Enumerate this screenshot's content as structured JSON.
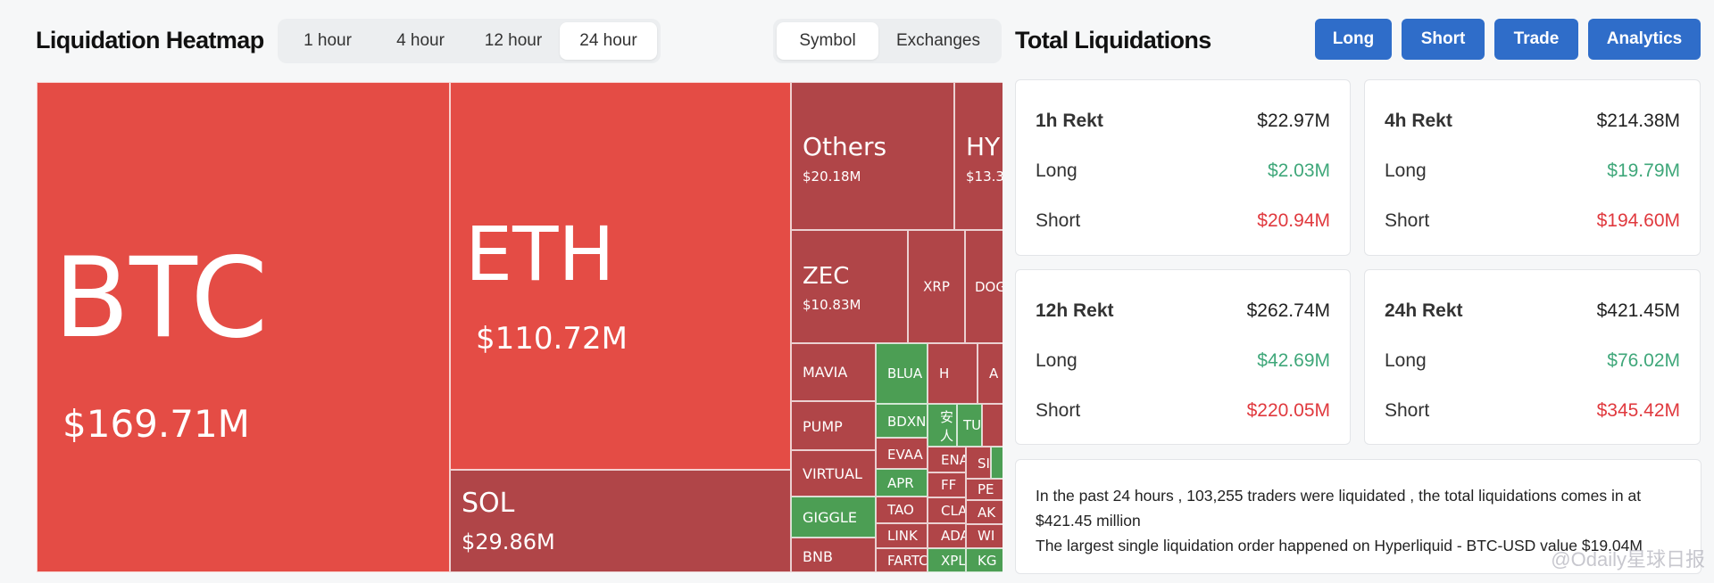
{
  "heatmap": {
    "title": "Liquidation Heatmap",
    "timeframes": [
      "1 hour",
      "4 hour",
      "12 hour",
      "24 hour"
    ],
    "selected_timeframe": "24 hour",
    "view_tabs": [
      "Symbol",
      "Exchanges"
    ],
    "selected_view": "Symbol",
    "cells": {
      "btc": {
        "symbol": "BTC",
        "value": "$169.71M"
      },
      "eth": {
        "symbol": "ETH",
        "value": "$110.72M"
      },
      "sol": {
        "symbol": "SOL",
        "value": "$29.86M"
      },
      "others": {
        "symbol": "Others",
        "value": "$20.18M"
      },
      "hype": {
        "symbol": "HY",
        "value": "$13.3"
      },
      "zec": {
        "symbol": "ZEC",
        "value": "$10.83M"
      },
      "xrp": {
        "symbol": "XRP"
      },
      "doge": {
        "symbol": "DOG"
      },
      "mavia": {
        "symbol": "MAVIA"
      },
      "pump": {
        "symbol": "PUMP"
      },
      "virtual": {
        "symbol": "VIRTUAL"
      },
      "giggle": {
        "symbol": "GIGGLE"
      },
      "bnb": {
        "symbol": "BNB"
      },
      "blua": {
        "symbol": "BLUA"
      },
      "h": {
        "symbol": "H"
      },
      "a": {
        "symbol": "A"
      },
      "bdxn": {
        "symbol": "BDXN"
      },
      "anren": {
        "symbol": "安人"
      },
      "tu": {
        "symbol": "TU"
      },
      "evaa": {
        "symbol": "EVAA"
      },
      "ena": {
        "symbol": "ENA"
      },
      "si": {
        "symbol": "SI"
      },
      "apr": {
        "symbol": "APR"
      },
      "ff": {
        "symbol": "FF"
      },
      "pe": {
        "symbol": "PE"
      },
      "tao": {
        "symbol": "TAO"
      },
      "cla": {
        "symbol": "CLA"
      },
      "ak": {
        "symbol": "AK"
      },
      "link": {
        "symbol": "LINK"
      },
      "ada": {
        "symbol": "ADA"
      },
      "wi": {
        "symbol": "WI"
      },
      "farto": {
        "symbol": "FARTC"
      },
      "xpl": {
        "symbol": "XPL"
      },
      "kg": {
        "symbol": "KG"
      }
    }
  },
  "totals": {
    "title": "Total Liquidations",
    "buttons": [
      "Long",
      "Short",
      "Trade",
      "Analytics"
    ],
    "cards": [
      {
        "label": "1h Rekt",
        "total": "$22.97M",
        "long_label": "Long",
        "long": "$2.03M",
        "short_label": "Short",
        "short": "$20.94M"
      },
      {
        "label": "4h Rekt",
        "total": "$214.38M",
        "long_label": "Long",
        "long": "$19.79M",
        "short_label": "Short",
        "short": "$194.60M"
      },
      {
        "label": "12h Rekt",
        "total": "$262.74M",
        "long_label": "Long",
        "long": "$42.69M",
        "short_label": "Short",
        "short": "$220.05M"
      },
      {
        "label": "24h Rekt",
        "total": "$421.45M",
        "long_label": "Long",
        "long": "$76.02M",
        "short_label": "Short",
        "short": "$345.42M"
      }
    ],
    "summary_line1": "In the past 24 hours , 103,255 traders were liquidated , the total liquidations comes in at $421.45 million",
    "summary_line2": "The largest single liquidation order happened on Hyperliquid - BTC-USD value $19.04M"
  },
  "watermark": "@Odaily星球日报",
  "colors": {
    "red": "#e44c45",
    "dark_red": "#b04548",
    "green": "#4c9e54",
    "accent": "#2f6dc9"
  }
}
